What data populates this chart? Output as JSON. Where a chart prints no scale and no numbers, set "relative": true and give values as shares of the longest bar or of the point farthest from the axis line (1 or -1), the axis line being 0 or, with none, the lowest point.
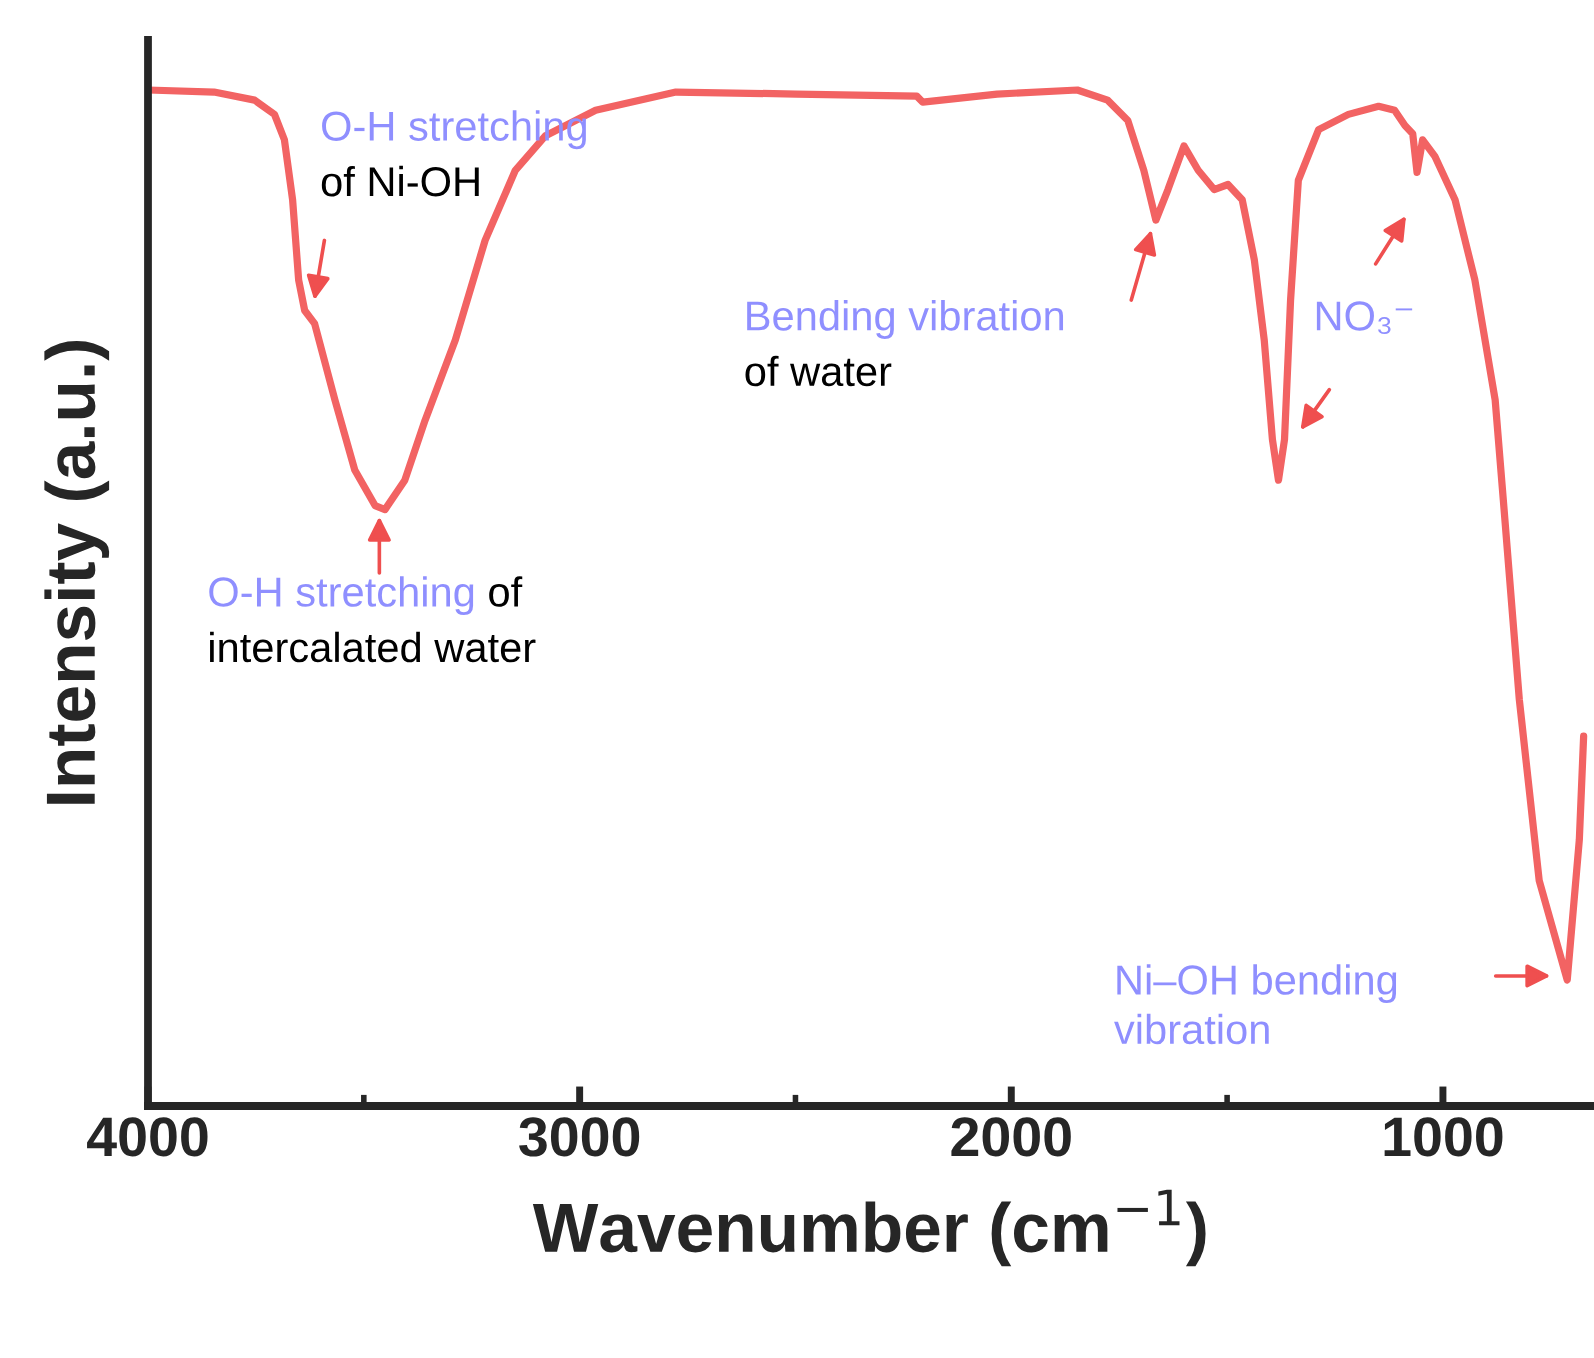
{
  "chart_data": {
    "type": "line",
    "relative": true,
    "xlabel": "Wavenumber (cm$^{−1}$)",
    "ylabel": "Intensity (a.u.)",
    "xlim": [
      4000,
      650
    ],
    "xticks": [
      4000,
      3000,
      2000,
      1000
    ],
    "tick_labels": "x",
    "grid": false,
    "legend": false,
    "line_style": "solid",
    "marker": "none",
    "x": [
      4000,
      3847,
      3753,
      3707,
      3684,
      3665,
      3651,
      3637,
      3614,
      3567,
      3521,
      3474,
      3451,
      3405,
      3358,
      3288,
      3219,
      3149,
      3079,
      2963,
      2777,
      2498,
      2219,
      2205,
      2033,
      1847,
      1777,
      1730,
      1693,
      1665,
      1637,
      1600,
      1567,
      1530,
      1498,
      1465,
      1437,
      1414,
      1395,
      1381,
      1367,
      1353,
      1335,
      1288,
      1219,
      1149,
      1112,
      1088,
      1070,
      1060,
      1047,
      1019,
      972,
      926,
      879,
      860,
      823,
      777,
      712,
      684,
      674
    ],
    "series": [
      {
        "color": "#f26363",
        "values": [
          1.0,
          0.998,
          0.99,
          0.976,
          0.951,
          0.892,
          0.813,
          0.783,
          0.77,
          0.695,
          0.626,
          0.591,
          0.587,
          0.616,
          0.675,
          0.754,
          0.852,
          0.921,
          0.955,
          0.98,
          0.998,
          0.996,
          0.994,
          0.988,
          0.996,
          1.0,
          0.99,
          0.97,
          0.921,
          0.872,
          0.902,
          0.945,
          0.921,
          0.902,
          0.907,
          0.892,
          0.833,
          0.754,
          0.656,
          0.616,
          0.656,
          0.793,
          0.911,
          0.961,
          0.976,
          0.984,
          0.98,
          0.965,
          0.957,
          0.919,
          0.951,
          0.935,
          0.892,
          0.813,
          0.695,
          0.596,
          0.4,
          0.222,
          0.124,
          0.262,
          0.364
        ]
      }
    ],
    "annotations": [
      "O-H stretching",
      "of Ni-OH",
      "O-H stretching",
      "of",
      "intercalated water",
      "Bending vibration",
      "of water",
      "NO₃⁻",
      "Ni–OH bending\nvibration"
    ]
  }
}
